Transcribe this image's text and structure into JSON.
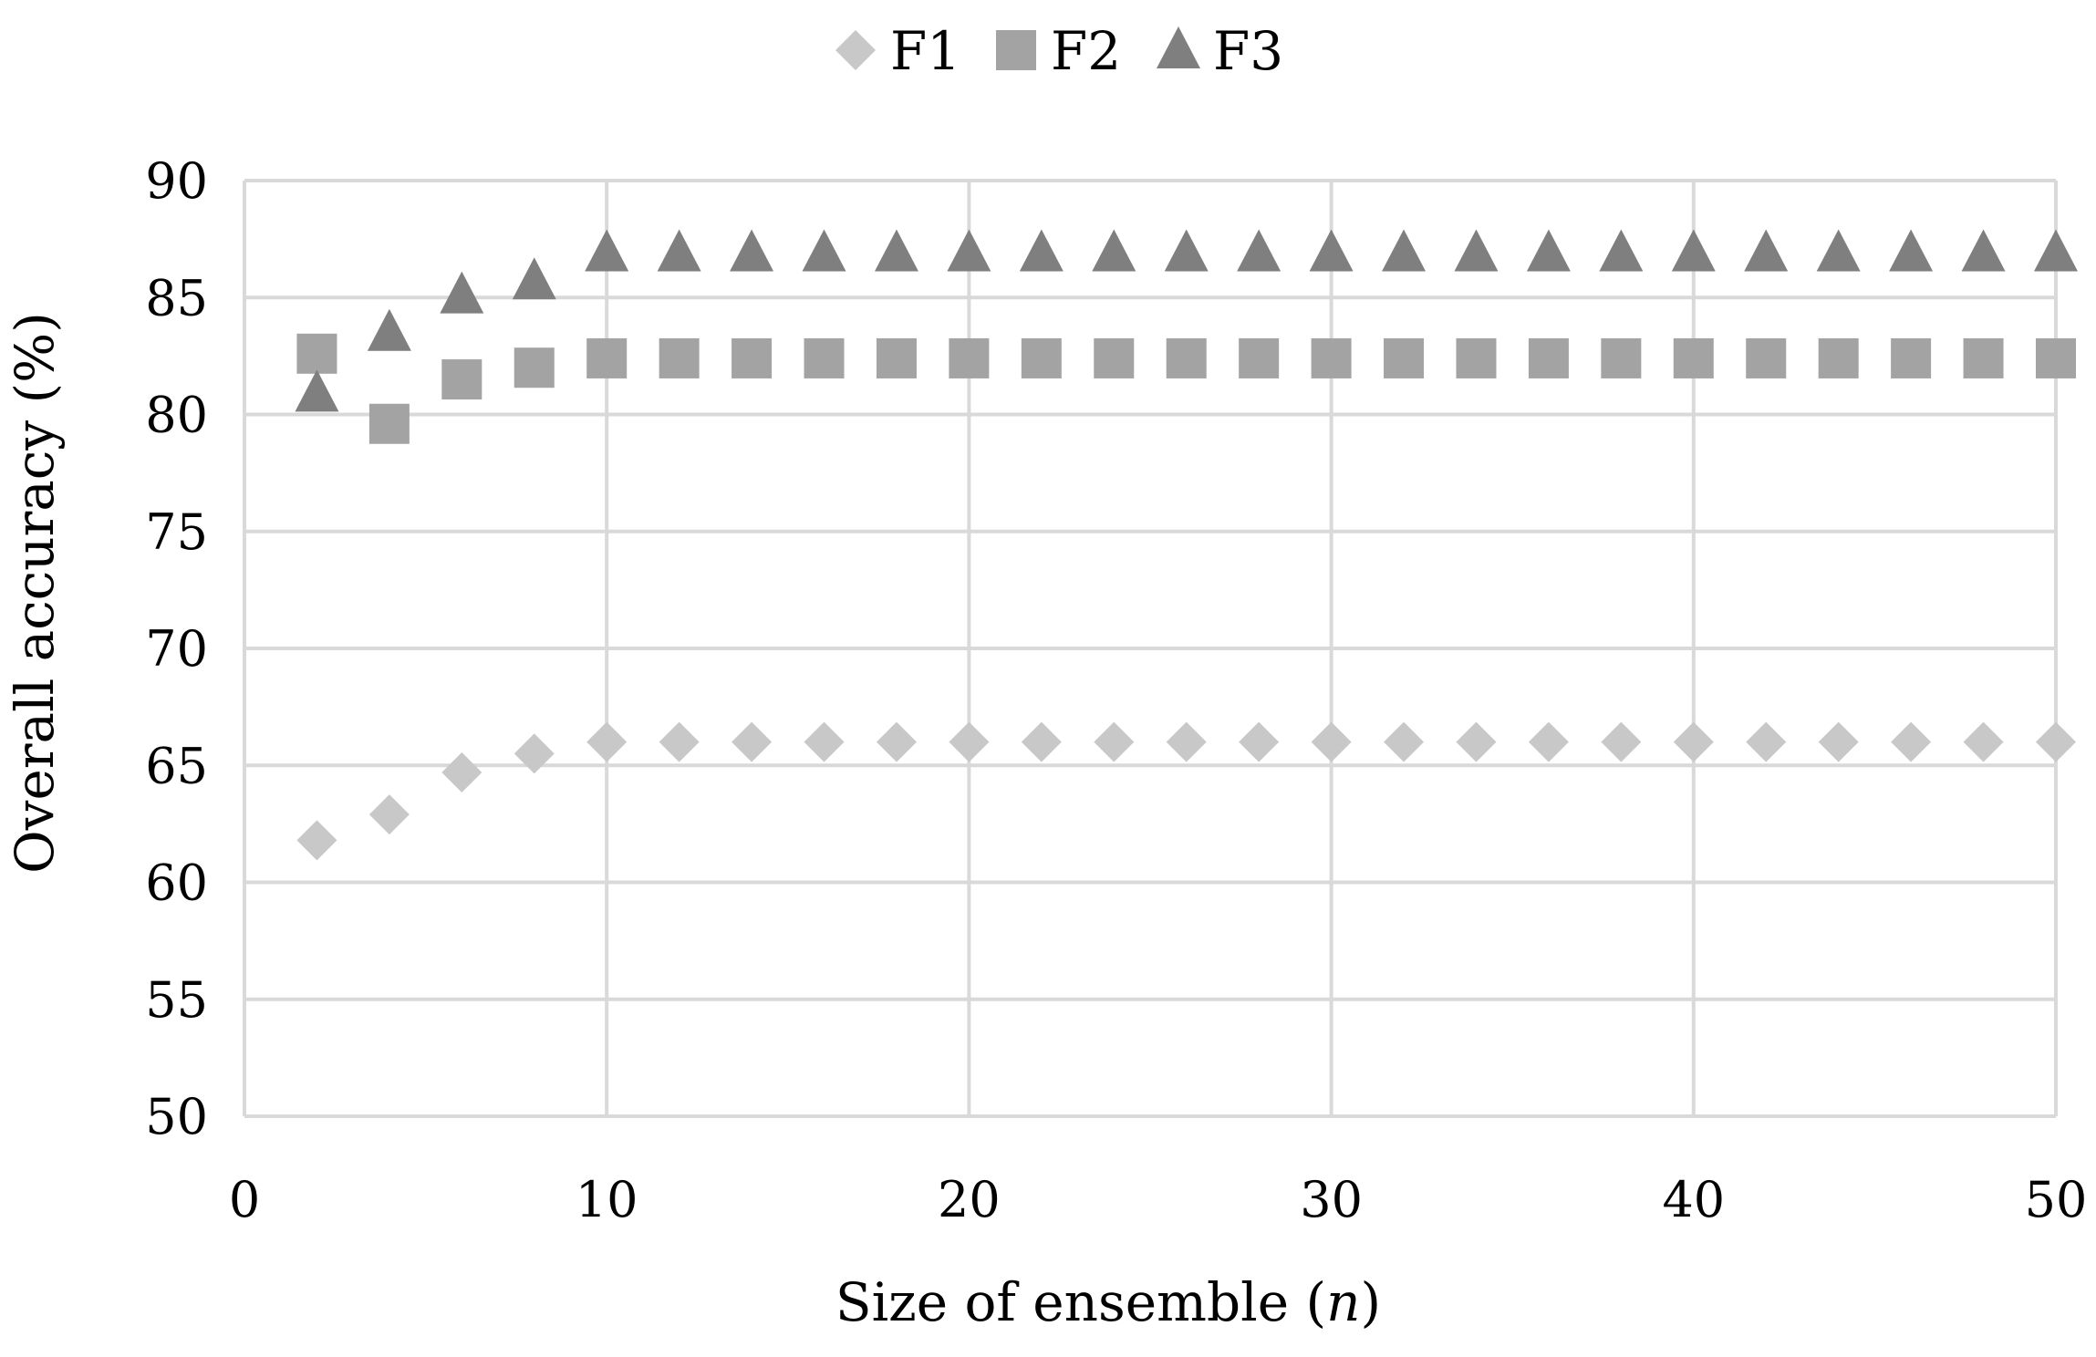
{
  "chart_data": {
    "type": "scatter",
    "title": "",
    "xlabel_main": "Size of ensemble (",
    "xlabel_var": "n",
    "xlabel_end": ")",
    "ylabel": "Overall accuracy (%)",
    "xlim": [
      0,
      50
    ],
    "ylim": [
      50,
      90
    ],
    "xticks": [
      0,
      10,
      20,
      30,
      40,
      50
    ],
    "yticks": [
      50,
      55,
      60,
      65,
      70,
      75,
      80,
      85,
      90
    ],
    "grid": true,
    "legend_position": "top-center",
    "series": [
      {
        "name": "F1",
        "marker": "diamond",
        "color": "#c8c8c8",
        "x": [
          2,
          4,
          6,
          8,
          10,
          12,
          14,
          16,
          18,
          20,
          22,
          24,
          26,
          28,
          30,
          32,
          34,
          36,
          38,
          40,
          42,
          44,
          46,
          48,
          50
        ],
        "y": [
          61.8,
          62.9,
          64.7,
          65.5,
          66.0,
          66.0,
          66.0,
          66.0,
          66.0,
          66.0,
          66.0,
          66.0,
          66.0,
          66.0,
          66.0,
          66.0,
          66.0,
          66.0,
          66.0,
          66.0,
          66.0,
          66.0,
          66.0,
          66.0,
          66.0
        ]
      },
      {
        "name": "F2",
        "marker": "square",
        "color": "#a3a3a3",
        "x": [
          2,
          4,
          6,
          8,
          10,
          12,
          14,
          16,
          18,
          20,
          22,
          24,
          26,
          28,
          30,
          32,
          34,
          36,
          38,
          40,
          42,
          44,
          46,
          48,
          50
        ],
        "y": [
          82.6,
          79.6,
          81.5,
          82.0,
          82.4,
          82.4,
          82.4,
          82.4,
          82.4,
          82.4,
          82.4,
          82.4,
          82.4,
          82.4,
          82.4,
          82.4,
          82.4,
          82.4,
          82.4,
          82.4,
          82.4,
          82.4,
          82.4,
          82.4,
          82.4
        ]
      },
      {
        "name": "F3",
        "marker": "triangle",
        "color": "#7f7f7f",
        "x": [
          2,
          4,
          6,
          8,
          10,
          12,
          14,
          16,
          18,
          20,
          22,
          24,
          26,
          28,
          30,
          32,
          34,
          36,
          38,
          40,
          42,
          44,
          46,
          48,
          50
        ],
        "y": [
          80.9,
          83.5,
          85.1,
          85.7,
          86.9,
          86.9,
          86.9,
          86.9,
          86.9,
          86.9,
          86.9,
          86.9,
          86.9,
          86.9,
          86.9,
          86.9,
          86.9,
          86.9,
          86.9,
          86.9,
          86.9,
          86.9,
          86.9,
          86.9,
          86.9
        ]
      }
    ]
  }
}
